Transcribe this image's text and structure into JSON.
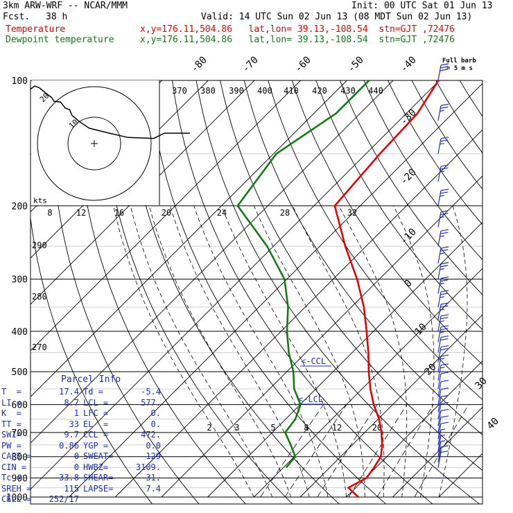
{
  "header": {
    "model": "3km ARW-WRF -- NCAR/MMM",
    "init": "Init: 00 UTC Sat 01 Jun 13",
    "fcst_label": "Fcst.",
    "fcst_value": "38 h",
    "valid": "Valid: 14 UTC Sun 02 Jun 13 (08 MDT Sun 02 Jun 13)",
    "temp_label": "Temperature",
    "temp_loc": "x,y=176.11,504.86   lat,lon= 39.13,-108.54  stn=GJT ,72476",
    "dew_label": "Dewpoint temperature",
    "dew_loc": "x,y=176.11,504.86   lat,lon= 39.13,-108.54  stn=GJT ,72476",
    "full_barb_line1": "Full barb",
    "full_barb_line2": "= 5 m s",
    "temp_color": "#e60000",
    "dew_color": "#137a13"
  },
  "parcel_info": {
    "title": "Parcel Info",
    "rows": [
      {
        "l1": "T  =",
        "v1": "17.4",
        "l2": "Td =",
        "v2": "-5.4"
      },
      {
        "l1": "LI =",
        "v1": "8.7",
        "l2": "LCL =",
        "v2": "577."
      },
      {
        "l1": "K  =",
        "v1": "1",
        "l2": "LFC =",
        "v2": "0."
      },
      {
        "l1": "TT =",
        "v1": "33",
        "l2": "EL  =",
        "v2": "0."
      },
      {
        "l1": "SWI=",
        "v1": "9.7",
        "l2": "CCL =",
        "v2": "472."
      },
      {
        "l1": "PW =",
        "v1": "0.86",
        "l2": "YGP =",
        "v2": "0.0"
      },
      {
        "l1": "CAPE =",
        "v1": "0",
        "l2": "SWEAT=",
        "v2": "129"
      },
      {
        "l1": "CIN =",
        "v1": "0",
        "l2": "HWBZ=",
        "v2": "3109."
      },
      {
        "l1": "Tc =",
        "v1": "33.8",
        "l2": "SHEAR=",
        "v2": "31."
      },
      {
        "l1": "SREH =",
        "v1": "115",
        "l2": "LAPSE=",
        "v2": "7.4"
      },
      {
        "l1": "CELL =",
        "v1": "252/17",
        "l2": "",
        "v2": ""
      }
    ]
  },
  "chart_data": {
    "type": "line",
    "title": "",
    "pressure_labels": [
      "100",
      "200",
      "300",
      "400",
      "500",
      "600",
      "700",
      "800",
      "900",
      "1000"
    ],
    "temperature_labels": [
      "-80",
      "-70",
      "-60",
      "-50",
      "-40",
      "-30",
      "-20",
      "-10",
      "0",
      "10",
      "20",
      "30",
      "40"
    ],
    "theta_labels": [
      "370",
      "380",
      "390",
      "400",
      "410",
      "420",
      "430",
      "440"
    ],
    "theta_left_labels": [
      "290",
      "280",
      "270"
    ],
    "mixing_ratio_labels": [
      "2",
      "3",
      "5",
      "8",
      "12",
      "20"
    ],
    "hodograph_speed_labels": [
      "8",
      "12",
      "16",
      "20",
      "24",
      "28",
      "32"
    ],
    "hodograph_units": "kts",
    "hodograph_ring_labels": [
      "10",
      "20"
    ],
    "ccl_label": "CCL",
    "lcl_label": "LCL",
    "series": [
      {
        "name": "Temperature",
        "color": "#e60000",
        "points": [
          [
            1000,
            12.6
          ],
          [
            950,
            8.4
          ],
          [
            900,
            10.2
          ],
          [
            850,
            9.6
          ],
          [
            800,
            8.7
          ],
          [
            750,
            6.5
          ],
          [
            700,
            3.6
          ],
          [
            650,
            0.2
          ],
          [
            600,
            -4.1
          ],
          [
            550,
            -8.2
          ],
          [
            500,
            -12.3
          ],
          [
            450,
            -16.5
          ],
          [
            400,
            -21.5
          ],
          [
            350,
            -27.3
          ],
          [
            300,
            -34.8
          ],
          [
            250,
            -44.5
          ],
          [
            200,
            -55.5
          ],
          [
            150,
            -57.0
          ],
          [
            120,
            -57.6
          ],
          [
            100,
            -60.2
          ]
        ]
      },
      {
        "name": "Dewpoint temperature",
        "color": "#137a13",
        "points": [
          [
            850,
            -9.4
          ],
          [
            800,
            -9.8
          ],
          [
            750,
            -13.3
          ],
          [
            700,
            -17.2
          ],
          [
            650,
            -17.9
          ],
          [
            600,
            -19.9
          ],
          [
            550,
            -24.7
          ],
          [
            500,
            -28.6
          ],
          [
            450,
            -33.7
          ],
          [
            400,
            -38.7
          ],
          [
            350,
            -43.7
          ],
          [
            300,
            -50.5
          ],
          [
            250,
            -61.4
          ],
          [
            200,
            -76.5
          ],
          [
            150,
            -79.4
          ],
          [
            120,
            -75.2
          ],
          [
            100,
            -75.2
          ]
        ]
      }
    ],
    "hodograph_trace": [
      [
        -41.1,
        -78.0
      ],
      [
        -38.2,
        -82.9
      ],
      [
        -35.2,
        -80.3
      ],
      [
        -31.3,
        -73.0
      ],
      [
        -27.4,
        -66.5
      ],
      [
        -25.8,
        -61.0
      ],
      [
        -21.6,
        -59.8
      ],
      [
        -18.7,
        -51.3
      ],
      [
        -15.8,
        -48.8
      ],
      [
        -14.2,
        -40.3
      ],
      [
        -9.7,
        -31.9
      ],
      [
        -3.3,
        -22.1
      ],
      [
        9.7,
        -14.9
      ],
      [
        21.6,
        -8.7
      ],
      [
        38.2,
        -7.4
      ],
      [
        45.0,
        -14.9
      ],
      [
        52.3,
        -14.9
      ],
      [
        59.0,
        -14.9
      ],
      [
        61.3,
        -14.9
      ]
    ],
    "wind_barbs": [
      [
        100,
        30
      ],
      [
        125,
        25
      ],
      [
        150,
        25
      ],
      [
        175,
        25
      ],
      [
        200,
        25
      ],
      [
        225,
        25
      ],
      [
        250,
        25
      ],
      [
        275,
        25
      ],
      [
        300,
        25
      ],
      [
        325,
        25
      ],
      [
        350,
        25
      ],
      [
        375,
        25
      ],
      [
        400,
        25
      ],
      [
        425,
        25
      ],
      [
        450,
        20
      ],
      [
        475,
        20
      ],
      [
        500,
        15
      ],
      [
        525,
        15
      ],
      [
        550,
        10
      ],
      [
        575,
        10
      ],
      [
        600,
        10
      ],
      [
        625,
        10
      ],
      [
        650,
        10
      ],
      [
        675,
        10
      ],
      [
        700,
        10
      ],
      [
        725,
        10
      ],
      [
        750,
        5
      ],
      [
        775,
        5
      ],
      [
        800,
        5
      ],
      [
        825,
        10
      ],
      [
        850,
        10
      ]
    ]
  }
}
